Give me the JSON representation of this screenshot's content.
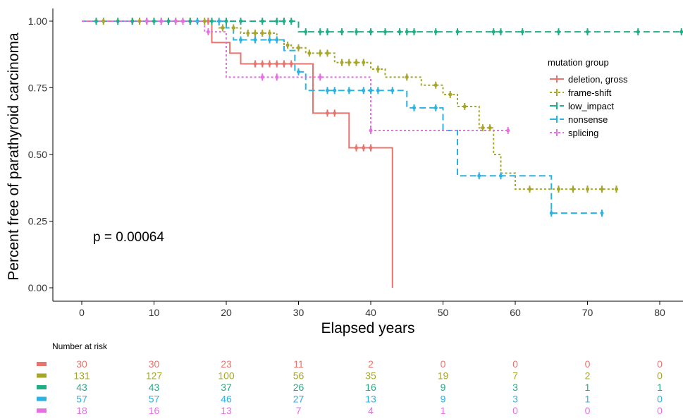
{
  "chart_data": {
    "type": "line",
    "subtype": "kaplan-meier",
    "ylabel": "Percent free of parathyroid carcinoma",
    "xlabel": "Elapsed years",
    "xlim": [
      -4,
      83
    ],
    "ylim": [
      -0.05,
      1.05
    ],
    "x_ticks": [
      "0",
      "10",
      "20",
      "30",
      "40",
      "50",
      "60",
      "70",
      "80"
    ],
    "y_ticks": [
      "0.00",
      "0.25",
      "0.50",
      "0.75",
      "1.00"
    ],
    "annotation": "p = 0.00064",
    "legend": {
      "title": "mutation group",
      "position": "right"
    },
    "series": [
      {
        "name": "deletion, gross",
        "color": "#e8746d",
        "dash": "solid",
        "steps": [
          [
            0,
            1.0
          ],
          [
            18,
            0.92
          ],
          [
            20.5,
            0.88
          ],
          [
            22,
            0.84
          ],
          [
            32,
            0.655
          ],
          [
            37,
            0.525
          ],
          [
            43,
            0.0
          ]
        ],
        "end_x": 43,
        "censors": [
          17.5,
          24,
          25,
          26,
          27,
          28,
          29,
          34,
          35,
          38,
          39,
          40
        ]
      },
      {
        "name": "frame-shift",
        "color": "#a6a62b",
        "dash": "dotted",
        "steps": [
          [
            0,
            1.0
          ],
          [
            19,
            0.975
          ],
          [
            22,
            0.955
          ],
          [
            27,
            0.93
          ],
          [
            28,
            0.91
          ],
          [
            29,
            0.9
          ],
          [
            31,
            0.88
          ],
          [
            35,
            0.845
          ],
          [
            40,
            0.82
          ],
          [
            42,
            0.79
          ],
          [
            47,
            0.76
          ],
          [
            50,
            0.725
          ],
          [
            52,
            0.68
          ],
          [
            55,
            0.6
          ],
          [
            57,
            0.5
          ],
          [
            58,
            0.43
          ],
          [
            60,
            0.37
          ]
        ],
        "end_x": 74,
        "censors": [
          3,
          7,
          8,
          10,
          12,
          13,
          14,
          15,
          17,
          19.5,
          21,
          23,
          24,
          25,
          26,
          28.5,
          30,
          31.5,
          33,
          34,
          36,
          37,
          38,
          39,
          41,
          45,
          49,
          51,
          53,
          55.5,
          56.5,
          62,
          66,
          68,
          70,
          72,
          74
        ]
      },
      {
        "name": "low_impact",
        "color": "#1fae86",
        "dash": "dashed",
        "steps": [
          [
            0,
            1.0
          ],
          [
            30,
            0.96
          ]
        ],
        "end_x": 83,
        "censors": [
          2,
          5,
          7,
          9,
          10,
          12,
          14,
          15,
          16,
          18,
          20,
          22,
          25,
          27,
          28,
          29,
          31,
          33,
          34,
          36,
          38,
          40,
          42,
          44,
          45,
          46,
          49,
          52,
          57,
          58,
          61,
          66,
          70,
          77,
          83
        ]
      },
      {
        "name": "nonsense",
        "color": "#2ab2e3",
        "dash": "dashed",
        "steps": [
          [
            0,
            1.0
          ],
          [
            20,
            0.975
          ],
          [
            21,
            0.93
          ],
          [
            28,
            0.89
          ],
          [
            29.5,
            0.81
          ],
          [
            31,
            0.74
          ],
          [
            45,
            0.675
          ],
          [
            50,
            0.59
          ],
          [
            52,
            0.42
          ],
          [
            65,
            0.28
          ]
        ],
        "end_x": 72,
        "censors": [
          11,
          14,
          16,
          19,
          22,
          24,
          26,
          27,
          30,
          34,
          35,
          37,
          39,
          40,
          41,
          43,
          46,
          49,
          55,
          58,
          65,
          72
        ]
      },
      {
        "name": "splicing",
        "color": "#e56fe3",
        "dash": "dotted",
        "steps": [
          [
            0,
            1.0
          ],
          [
            17,
            0.96
          ],
          [
            20,
            0.79
          ],
          [
            40,
            0.59
          ]
        ],
        "end_x": 59,
        "censors": [
          9,
          11,
          13,
          14,
          17.5,
          25,
          27,
          33,
          40,
          59
        ]
      }
    ]
  },
  "risk_table": {
    "title": "Number at risk",
    "rows": [
      {
        "color": "#e8746d",
        "values": [
          "30",
          "30",
          "23",
          "11",
          "2",
          "0",
          "0",
          "0",
          "0"
        ]
      },
      {
        "color": "#a6a62b",
        "values": [
          "131",
          "127",
          "100",
          "56",
          "35",
          "19",
          "7",
          "2",
          "0"
        ]
      },
      {
        "color": "#1fae86",
        "values": [
          "43",
          "43",
          "37",
          "26",
          "16",
          "9",
          "3",
          "1",
          "1"
        ]
      },
      {
        "color": "#2ab2e3",
        "values": [
          "57",
          "57",
          "46",
          "27",
          "13",
          "9",
          "3",
          "1",
          "0"
        ]
      },
      {
        "color": "#e56fe3",
        "values": [
          "18",
          "16",
          "13",
          "7",
          "4",
          "1",
          "0",
          "0",
          "0"
        ]
      }
    ]
  }
}
